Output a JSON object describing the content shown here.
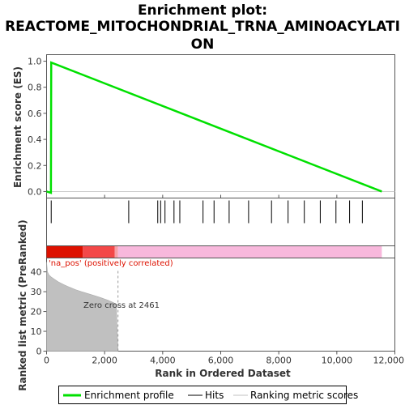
{
  "chart_data": {
    "type": "line",
    "title_line1": "Enrichment plot:",
    "title_line2": "REACTOME_MITOCHONDRIAL_TRNA_AMINOACYLATI",
    "title_line3": "ON",
    "xlabel": "Rank in Ordered Dataset",
    "es_ylabel": "Enrichment score (ES)",
    "rank_ylabel": "Ranked list metric (PreRanked)",
    "xlim": [
      0,
      12000
    ],
    "es_ylim": [
      -0.05,
      1.05
    ],
    "rank_ylim": [
      0,
      47
    ],
    "x_ticks": [
      {
        "value": 0,
        "label": "0"
      },
      {
        "value": 2000,
        "label": "2,000"
      },
      {
        "value": 4000,
        "label": "4,000"
      },
      {
        "value": 6000,
        "label": "6,000"
      },
      {
        "value": 8000,
        "label": "8,000"
      },
      {
        "value": 10000,
        "label": "10,000"
      },
      {
        "value": 12000,
        "label": "12,000"
      }
    ],
    "es_ticks": [
      {
        "value": 0.0,
        "label": "0.0"
      },
      {
        "value": 0.2,
        "label": "0.2"
      },
      {
        "value": 0.4,
        "label": "0.4"
      },
      {
        "value": 0.6,
        "label": "0.6"
      },
      {
        "value": 0.8,
        "label": "0.8"
      },
      {
        "value": 1.0,
        "label": "1.0"
      }
    ],
    "rank_ticks": [
      {
        "value": 0,
        "label": "0"
      },
      {
        "value": 10,
        "label": "10"
      },
      {
        "value": 20,
        "label": "20"
      },
      {
        "value": 30,
        "label": "30"
      },
      {
        "value": 40,
        "label": "40"
      }
    ],
    "enrichment_profile": {
      "name": "Enrichment profile",
      "color": "#00e000",
      "x": [
        0,
        150,
        160,
        11550
      ],
      "y": [
        0.0,
        -0.01,
        0.99,
        0.0
      ]
    },
    "hits": {
      "name": "Hits",
      "x": [
        160,
        2830,
        3830,
        3930,
        4080,
        4390,
        4590,
        5390,
        5770,
        6290,
        6960,
        7750,
        8320,
        8880,
        9430,
        9970,
        10440,
        10880
      ]
    },
    "ranking_metric": {
      "name": "Ranking metric scores",
      "color": "#c0c0c0",
      "x": [
        0,
        30,
        80,
        150,
        250,
        400,
        600,
        800,
        1000,
        1200,
        1500,
        1800,
        2100,
        2300,
        2400,
        2461
      ],
      "y": [
        45,
        40,
        38.5,
        37.5,
        36.5,
        35,
        33.5,
        32.2,
        31,
        30,
        28.7,
        27.3,
        25.8,
        24.5,
        23.6,
        0
      ]
    },
    "color_bar": [
      {
        "from": 0,
        "to": 1250,
        "color": "#dd1100"
      },
      {
        "from": 1250,
        "to": 2350,
        "color": "#f34848"
      },
      {
        "from": 2350,
        "to": 2461,
        "color": "#f6a0a8"
      },
      {
        "from": 2461,
        "to": 11550,
        "color": "#f8b8dc"
      }
    ],
    "zero_cross_rank": 2461,
    "pos_label": "'na_pos' (positively correlated)",
    "zero_cross_label": "Zero cross at 2461",
    "legend": [
      {
        "label": "Enrichment profile",
        "color": "#00e000",
        "style": "thick"
      },
      {
        "label": "Hits",
        "color": "#000000",
        "style": "thin"
      },
      {
        "label": "Ranking metric scores",
        "color": "#c0c0c0",
        "style": "thin"
      }
    ],
    "legend_position": "bottom"
  }
}
